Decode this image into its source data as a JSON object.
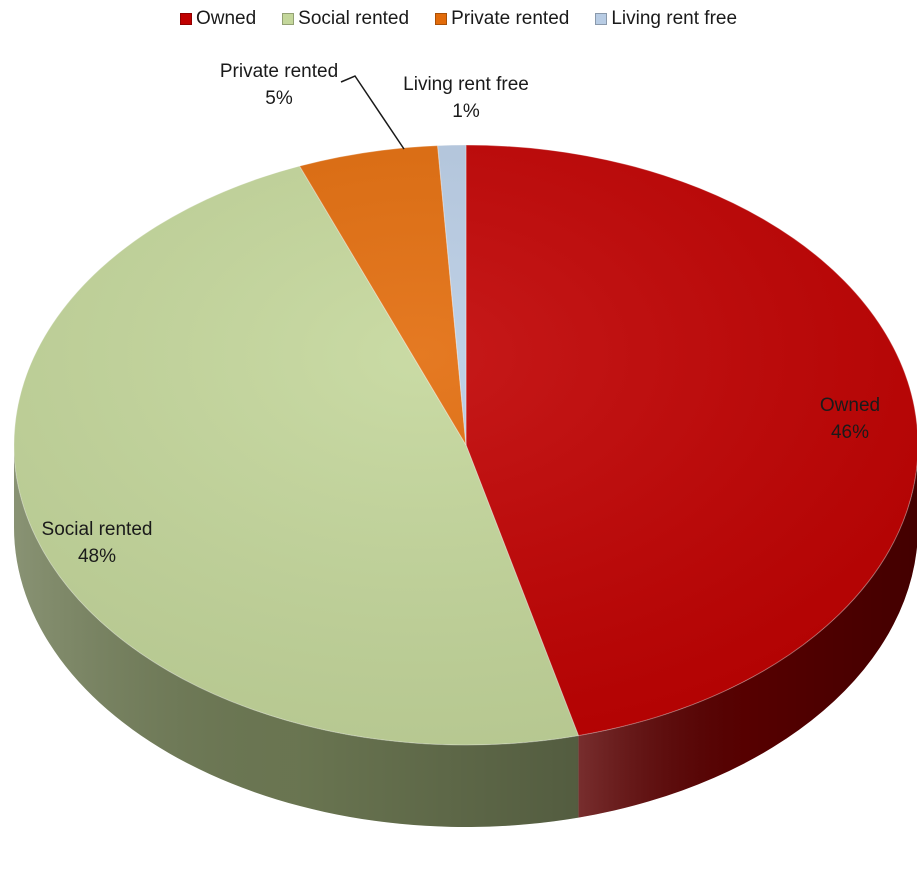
{
  "chart_data": {
    "type": "pie",
    "style": "3d",
    "legend_position": "top",
    "categories": [
      "Owned",
      "Social rented",
      "Private rented",
      "Living rent free"
    ],
    "values": [
      46,
      48,
      5,
      1
    ],
    "labels": [
      "46%",
      "48%",
      "5%",
      "1%"
    ],
    "colors": [
      "#c00000",
      "#c4d79b",
      "#e26b0a",
      "#b8cce4"
    ],
    "side_colors": [
      "#5a0000",
      "#6f7b55",
      "#7a3a06",
      "#6f7f95"
    ]
  }
}
